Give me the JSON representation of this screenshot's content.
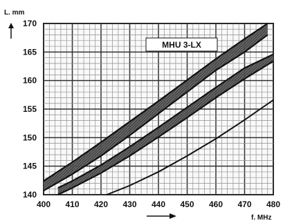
{
  "chart_data": {
    "type": "area",
    "title": "",
    "xlabel": "f. MHz",
    "ylabel": "L. mm",
    "xlim": [
      400,
      480
    ],
    "ylim": [
      140,
      170
    ],
    "x_ticks": [
      400,
      410,
      420,
      430,
      440,
      450,
      460,
      470,
      480
    ],
    "y_ticks": [
      140,
      145,
      150,
      155,
      160,
      165,
      170
    ],
    "grid": true,
    "annotation": "MHU 3-LX",
    "bands": [
      {
        "lower": [
          {
            "x": 400,
            "y": 140.7
          },
          {
            "x": 410,
            "y": 143.6
          },
          {
            "x": 420,
            "y": 146.8
          },
          {
            "x": 430,
            "y": 150.4
          },
          {
            "x": 440,
            "y": 154.2
          },
          {
            "x": 450,
            "y": 158.0
          },
          {
            "x": 460,
            "y": 161.8
          },
          {
            "x": 470,
            "y": 165.0
          },
          {
            "x": 478,
            "y": 168.0
          }
        ],
        "upper": [
          {
            "x": 400,
            "y": 142.4
          },
          {
            "x": 410,
            "y": 145.7
          },
          {
            "x": 420,
            "y": 149.2
          },
          {
            "x": 430,
            "y": 152.8
          },
          {
            "x": 440,
            "y": 156.4
          },
          {
            "x": 450,
            "y": 160.1
          },
          {
            "x": 460,
            "y": 163.8
          },
          {
            "x": 470,
            "y": 167.3
          },
          {
            "x": 478,
            "y": 170.0
          }
        ]
      },
      {
        "lower": [
          {
            "x": 405,
            "y": 140.0
          },
          {
            "x": 410,
            "y": 141.2
          },
          {
            "x": 420,
            "y": 143.8
          },
          {
            "x": 430,
            "y": 146.8
          },
          {
            "x": 440,
            "y": 150.1
          },
          {
            "x": 450,
            "y": 153.5
          },
          {
            "x": 460,
            "y": 157.0
          },
          {
            "x": 470,
            "y": 160.3
          },
          {
            "x": 480,
            "y": 163.4
          }
        ],
        "upper": [
          {
            "x": 405,
            "y": 141.2
          },
          {
            "x": 410,
            "y": 142.4
          },
          {
            "x": 420,
            "y": 145.2
          },
          {
            "x": 430,
            "y": 148.4
          },
          {
            "x": 440,
            "y": 151.8
          },
          {
            "x": 450,
            "y": 155.3
          },
          {
            "x": 460,
            "y": 158.8
          },
          {
            "x": 470,
            "y": 162.2
          },
          {
            "x": 480,
            "y": 164.6
          }
        ]
      }
    ],
    "series": [
      {
        "values": [
          {
            "x": 422,
            "y": 140.0
          },
          {
            "x": 430,
            "y": 141.6
          },
          {
            "x": 440,
            "y": 144.0
          },
          {
            "x": 450,
            "y": 146.8
          },
          {
            "x": 460,
            "y": 149.8
          },
          {
            "x": 470,
            "y": 153.1
          },
          {
            "x": 480,
            "y": 156.6
          }
        ]
      }
    ]
  }
}
